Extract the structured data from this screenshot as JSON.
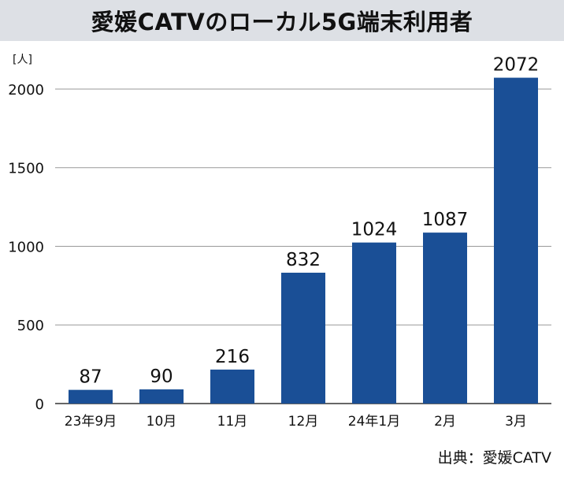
{
  "title": "愛媛CATVのローカル5G端末利用者",
  "source": "出典：愛媛CATV",
  "colors": {
    "bar": "#1a4f96",
    "title_background": "#dde0e5",
    "grid": "#999999",
    "text": "#111111"
  },
  "chart_data": {
    "type": "bar",
    "title": "愛媛CATVのローカル5G端末利用者",
    "unit_label": "[人]",
    "categories": [
      "23年9月",
      "10月",
      "11月",
      "12月",
      "24年1月",
      "2月",
      "3月"
    ],
    "values": [
      87,
      90,
      216,
      832,
      1024,
      1087,
      2072
    ],
    "data_labels": [
      "87",
      "90",
      "216",
      "832",
      "1024",
      "1087",
      "2072"
    ],
    "xlabel": "",
    "ylabel": "",
    "ylim": [
      0,
      2100
    ],
    "yticks": [
      0,
      500,
      1000,
      1500,
      2000
    ],
    "grid": true,
    "legend": "none"
  }
}
